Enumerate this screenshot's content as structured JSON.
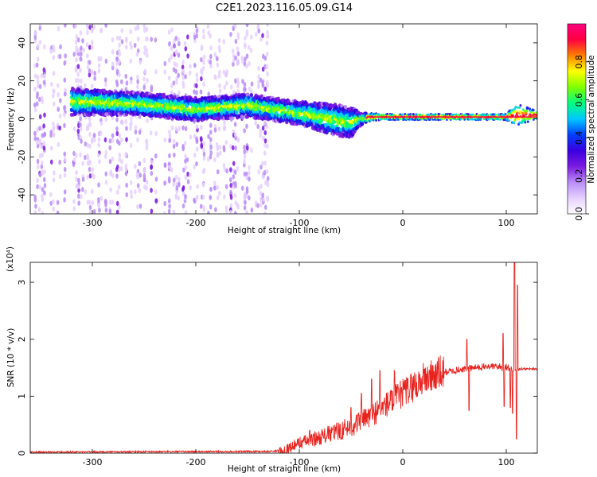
{
  "title": "C2E1.2023.116.05.09.G14",
  "chart_data": [
    {
      "type": "heatmap",
      "xlabel": "Height of straight line (km)",
      "ylabel": "Frequency (Hz)",
      "xlim": [
        -360,
        130
      ],
      "ylim": [
        -50,
        50
      ],
      "xticks": [
        -300,
        -200,
        -100,
        0,
        100
      ],
      "yticks": [
        -40,
        -20,
        0,
        20,
        40
      ],
      "colorbar": {
        "label": "Normalized spectral amplitude",
        "range": [
          0,
          1
        ],
        "ticks": [
          "0.0",
          "0.2",
          "0.4",
          "0.6",
          "0.8"
        ],
        "colormap": [
          "#ffffff",
          "#e6d0ff",
          "#b98cf7",
          "#7b1ae0",
          "#3a00e0",
          "#0040ff",
          "#00c8ff",
          "#00ff80",
          "#80ff00",
          "#ffff00",
          "#ff8000",
          "#ff0040",
          "#ff0080"
        ]
      },
      "noise_region": [
        -360,
        -130
      ],
      "signal_track": {
        "x": [
          -320,
          -260,
          -200,
          -150,
          -100,
          -70,
          -50,
          -40,
          -30,
          -20,
          0,
          50,
          100,
          110,
          130
        ],
        "center_freq_hz": [
          9,
          8,
          5,
          7,
          3,
          0,
          -2,
          0,
          1,
          1,
          1,
          1,
          1,
          2,
          2
        ],
        "spread_hz": [
          7,
          6,
          6,
          6,
          6,
          8,
          8,
          3,
          2,
          1.5,
          1.5,
          1.5,
          1.5,
          6,
          2
        ]
      }
    },
    {
      "type": "line",
      "xlabel": "Height of straight line (km)",
      "ylabel": "SNR (10 * v/v)",
      "y_multiplier": "(x10⁴)",
      "xlim": [
        -360,
        130
      ],
      "ylim": [
        0,
        3.35
      ],
      "xticks": [
        -300,
        -200,
        -100,
        0,
        100
      ],
      "yticks": [
        0,
        1,
        2,
        3
      ],
      "color": "#e8231e",
      "baseline": [
        {
          "x": -360,
          "y": 0.02
        },
        {
          "x": -130,
          "y": 0.03
        },
        {
          "x": -115,
          "y": 0.05
        },
        {
          "x": -100,
          "y": 0.18
        },
        {
          "x": -80,
          "y": 0.28
        },
        {
          "x": -60,
          "y": 0.4
        },
        {
          "x": -40,
          "y": 0.55
        },
        {
          "x": -20,
          "y": 0.8
        },
        {
          "x": 0,
          "y": 1.05
        },
        {
          "x": 20,
          "y": 1.3
        },
        {
          "x": 40,
          "y": 1.42
        },
        {
          "x": 60,
          "y": 1.48
        },
        {
          "x": 80,
          "y": 1.52
        },
        {
          "x": 100,
          "y": 1.52
        },
        {
          "x": 106,
          "y": 1.45
        },
        {
          "x": 112,
          "y": 1.48
        },
        {
          "x": 130,
          "y": 1.48
        }
      ],
      "spikes": [
        {
          "x": -90,
          "y": 0.4
        },
        {
          "x": -50,
          "y": 0.8
        },
        {
          "x": -40,
          "y": 1.05
        },
        {
          "x": -30,
          "y": 1.3
        },
        {
          "x": -22,
          "y": 1.45
        },
        {
          "x": -8,
          "y": 1.45
        },
        {
          "x": 14,
          "y": 1.0
        },
        {
          "x": 62,
          "y": 2.0
        },
        {
          "x": 64,
          "y": 0.75
        },
        {
          "x": 96,
          "y": 1.45
        },
        {
          "x": 97,
          "y": 2.1
        },
        {
          "x": 98,
          "y": 0.82
        },
        {
          "x": 104,
          "y": 0.8
        },
        {
          "x": 106,
          "y": 0.7
        },
        {
          "x": 108,
          "y": 3.35
        },
        {
          "x": 110,
          "y": 0.25
        },
        {
          "x": 111,
          "y": 2.95
        },
        {
          "x": 112,
          "y": 1.45
        }
      ]
    }
  ]
}
